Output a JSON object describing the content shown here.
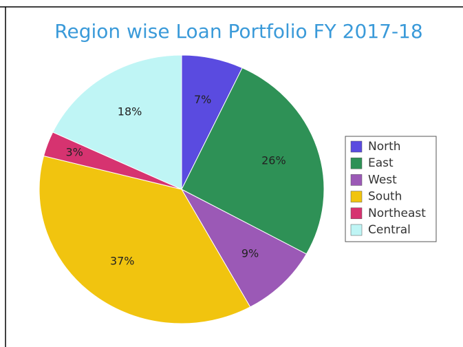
{
  "chart_data": {
    "type": "pie",
    "title": "Region wise Loan Portfolio FY 2017-18",
    "categories": [
      "North",
      "East",
      "West",
      "South",
      "Northeast",
      "Central"
    ],
    "values": [
      7,
      26,
      9,
      37,
      3,
      18
    ],
    "value_labels": [
      "7%",
      "26%",
      "9%",
      "37%",
      "3%",
      "18%"
    ],
    "colors": [
      "#5a4be0",
      "#2e9156",
      "#9b59b6",
      "#f1c40f",
      "#d63370",
      "#bff5f5"
    ],
    "legend": "right"
  }
}
